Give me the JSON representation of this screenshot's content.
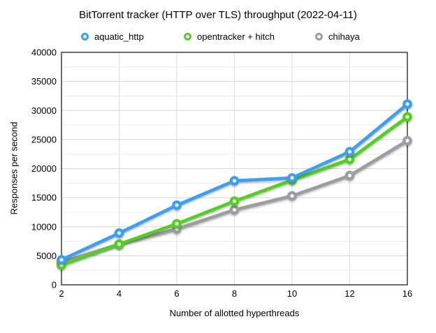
{
  "chart_data": {
    "type": "line",
    "title": "BitTorrent tracker (HTTP over TLS) throughput (2022-04-11)",
    "xlabel": "Number of allotted hyperthreads",
    "ylabel": "Responses per second",
    "x_axis_type": "categorical",
    "categories": [
      2,
      4,
      6,
      8,
      10,
      12,
      16
    ],
    "series": [
      {
        "name": "aquatic_http",
        "color": "#3AA0F2",
        "values": [
          4300,
          8900,
          13700,
          17900,
          18400,
          22900,
          31100
        ]
      },
      {
        "name": "opentracker + hitch",
        "color": "#52D022",
        "values": [
          3400,
          7000,
          10500,
          14400,
          18000,
          21600,
          28900
        ]
      },
      {
        "name": "chihaya",
        "color": "#9D9D9F",
        "values": [
          3900,
          7000,
          9600,
          12900,
          15300,
          18800,
          24800
        ]
      }
    ],
    "ylim": [
      0,
      40000
    ],
    "ytick_step": 5000,
    "yminor_step": 2500,
    "yticks": [
      "0",
      "5000",
      "10000",
      "15000",
      "20000",
      "25000",
      "30000",
      "35000",
      "40000"
    ],
    "grid": true,
    "legend_position": "top"
  },
  "style": {
    "border_color": "#3B3B3B",
    "major_grid_color": "#D5D5D5",
    "minor_grid_color": "#EBEBEB",
    "vertical_grid_color": "#DDDDDD",
    "background": "#FFFFFF"
  }
}
